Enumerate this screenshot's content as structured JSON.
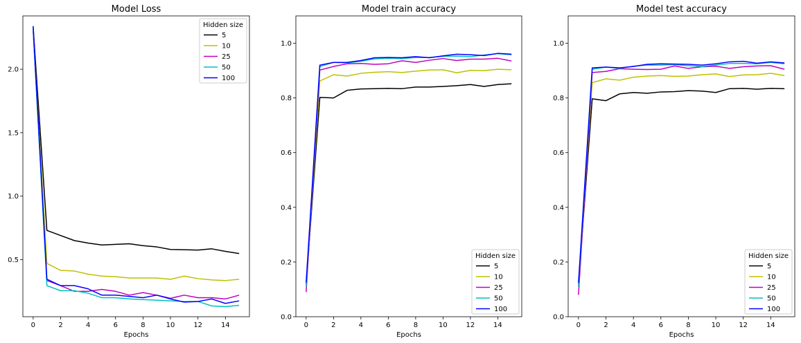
{
  "chart_data": [
    {
      "type": "line",
      "title": "Model Loss",
      "xlabel": "Epochs",
      "ylabel": "",
      "xlim": [
        -0.75,
        15.75
      ],
      "ylim": [
        0.05,
        2.42
      ],
      "xticks": [
        0,
        2,
        4,
        6,
        8,
        10,
        12,
        14
      ],
      "yticks": [
        0.5,
        1.0,
        1.5,
        2.0
      ],
      "ytick_labels": [
        "0.5",
        "1.0",
        "1.5",
        "2.0"
      ],
      "grid": false,
      "legend": {
        "title": "Hidden size",
        "placement": "top-right"
      },
      "x": [
        0,
        1,
        2,
        3,
        4,
        5,
        6,
        7,
        8,
        9,
        10,
        11,
        12,
        13,
        14,
        15
      ],
      "series": [
        {
          "name": "5",
          "color": "#000000",
          "values": [
            2.33,
            0.73,
            0.69,
            0.65,
            0.63,
            0.615,
            0.62,
            0.625,
            0.61,
            0.6,
            0.58,
            0.578,
            0.575,
            0.585,
            0.565,
            0.548
          ]
        },
        {
          "name": "10",
          "color": "#bfbf00",
          "values": [
            2.32,
            0.47,
            0.415,
            0.41,
            0.385,
            0.37,
            0.365,
            0.355,
            0.355,
            0.355,
            0.345,
            0.37,
            0.35,
            0.34,
            0.335,
            0.345
          ]
        },
        {
          "name": "25",
          "color": "#bf00bf",
          "values": [
            2.3,
            0.335,
            0.295,
            0.25,
            0.25,
            0.265,
            0.25,
            0.22,
            0.24,
            0.22,
            0.195,
            0.22,
            0.2,
            0.2,
            0.19,
            0.22
          ]
        },
        {
          "name": "50",
          "color": "#00bfbf",
          "values": [
            2.31,
            0.295,
            0.255,
            0.255,
            0.235,
            0.2,
            0.2,
            0.19,
            0.185,
            0.18,
            0.175,
            0.17,
            0.17,
            0.135,
            0.13,
            0.14
          ]
        },
        {
          "name": "100",
          "color": "#0000ff",
          "values": [
            2.34,
            0.345,
            0.295,
            0.295,
            0.27,
            0.22,
            0.22,
            0.21,
            0.2,
            0.22,
            0.19,
            0.165,
            0.17,
            0.19,
            0.155,
            0.175
          ]
        }
      ]
    },
    {
      "type": "line",
      "title": "Model train accuracy",
      "xlabel": "Epochs",
      "ylabel": "",
      "xlim": [
        -0.75,
        15.75
      ],
      "ylim": [
        0.0,
        1.1
      ],
      "xticks": [
        0,
        2,
        4,
        6,
        8,
        10,
        12,
        14
      ],
      "yticks": [
        0.0,
        0.2,
        0.4,
        0.6,
        0.8,
        1.0
      ],
      "ytick_labels": [
        "0.0",
        "0.2",
        "0.4",
        "0.6",
        "0.8",
        "1.0"
      ],
      "grid": false,
      "legend": {
        "title": "Hidden size",
        "placement": "bottom-right"
      },
      "x": [
        0,
        1,
        2,
        3,
        4,
        5,
        6,
        7,
        8,
        9,
        10,
        11,
        12,
        13,
        14,
        15
      ],
      "series": [
        {
          "name": "5",
          "color": "#000000",
          "values": [
            0.12,
            0.802,
            0.8,
            0.828,
            0.833,
            0.834,
            0.835,
            0.834,
            0.84,
            0.84,
            0.842,
            0.845,
            0.849,
            0.842,
            0.849,
            0.852
          ]
        },
        {
          "name": "10",
          "color": "#bfbf00",
          "values": [
            0.11,
            0.862,
            0.885,
            0.88,
            0.89,
            0.894,
            0.896,
            0.893,
            0.898,
            0.902,
            0.903,
            0.892,
            0.901,
            0.9,
            0.905,
            0.903
          ]
        },
        {
          "name": "25",
          "color": "#bf00bf",
          "values": [
            0.09,
            0.902,
            0.915,
            0.925,
            0.926,
            0.923,
            0.925,
            0.936,
            0.93,
            0.938,
            0.944,
            0.937,
            0.942,
            0.942,
            0.945,
            0.935
          ]
        },
        {
          "name": "50",
          "color": "#00bfbf",
          "values": [
            0.11,
            0.915,
            0.93,
            0.928,
            0.934,
            0.943,
            0.945,
            0.944,
            0.948,
            0.948,
            0.952,
            0.953,
            0.951,
            0.957,
            0.962,
            0.958
          ]
        },
        {
          "name": "100",
          "color": "#0000ff",
          "values": [
            0.125,
            0.92,
            0.93,
            0.93,
            0.937,
            0.947,
            0.948,
            0.947,
            0.951,
            0.947,
            0.954,
            0.96,
            0.958,
            0.955,
            0.963,
            0.96
          ]
        }
      ]
    },
    {
      "type": "line",
      "title": "Model test accuracy",
      "xlabel": "Epochs",
      "ylabel": "",
      "xlim": [
        -0.75,
        15.75
      ],
      "ylim": [
        0.0,
        1.1
      ],
      "xticks": [
        0,
        2,
        4,
        6,
        8,
        10,
        12,
        14
      ],
      "yticks": [
        0.0,
        0.2,
        0.4,
        0.6,
        0.8,
        1.0
      ],
      "ytick_labels": [
        "0.0",
        "0.2",
        "0.4",
        "0.6",
        "0.8",
        "1.0"
      ],
      "grid": false,
      "legend": {
        "title": "Hidden size",
        "placement": "bottom-right"
      },
      "x": [
        0,
        1,
        2,
        3,
        4,
        5,
        6,
        7,
        8,
        9,
        10,
        11,
        12,
        13,
        14,
        15
      ],
      "series": [
        {
          "name": "5",
          "color": "#000000",
          "values": [
            0.12,
            0.797,
            0.79,
            0.815,
            0.82,
            0.817,
            0.822,
            0.823,
            0.827,
            0.825,
            0.82,
            0.834,
            0.835,
            0.832,
            0.835,
            0.834
          ]
        },
        {
          "name": "10",
          "color": "#bfbf00",
          "values": [
            0.11,
            0.856,
            0.87,
            0.865,
            0.876,
            0.88,
            0.882,
            0.879,
            0.88,
            0.885,
            0.888,
            0.878,
            0.884,
            0.885,
            0.89,
            0.882
          ]
        },
        {
          "name": "25",
          "color": "#bf00bf",
          "values": [
            0.08,
            0.893,
            0.897,
            0.907,
            0.905,
            0.904,
            0.905,
            0.917,
            0.908,
            0.914,
            0.916,
            0.908,
            0.914,
            0.917,
            0.918,
            0.905
          ]
        },
        {
          "name": "50",
          "color": "#00bfbf",
          "values": [
            0.11,
            0.905,
            0.913,
            0.908,
            0.916,
            0.92,
            0.92,
            0.922,
            0.918,
            0.915,
            0.92,
            0.926,
            0.926,
            0.925,
            0.93,
            0.925
          ]
        },
        {
          "name": "100",
          "color": "#0000ff",
          "values": [
            0.125,
            0.91,
            0.913,
            0.91,
            0.915,
            0.923,
            0.925,
            0.924,
            0.923,
            0.92,
            0.925,
            0.932,
            0.934,
            0.927,
            0.932,
            0.928
          ]
        }
      ]
    }
  ]
}
